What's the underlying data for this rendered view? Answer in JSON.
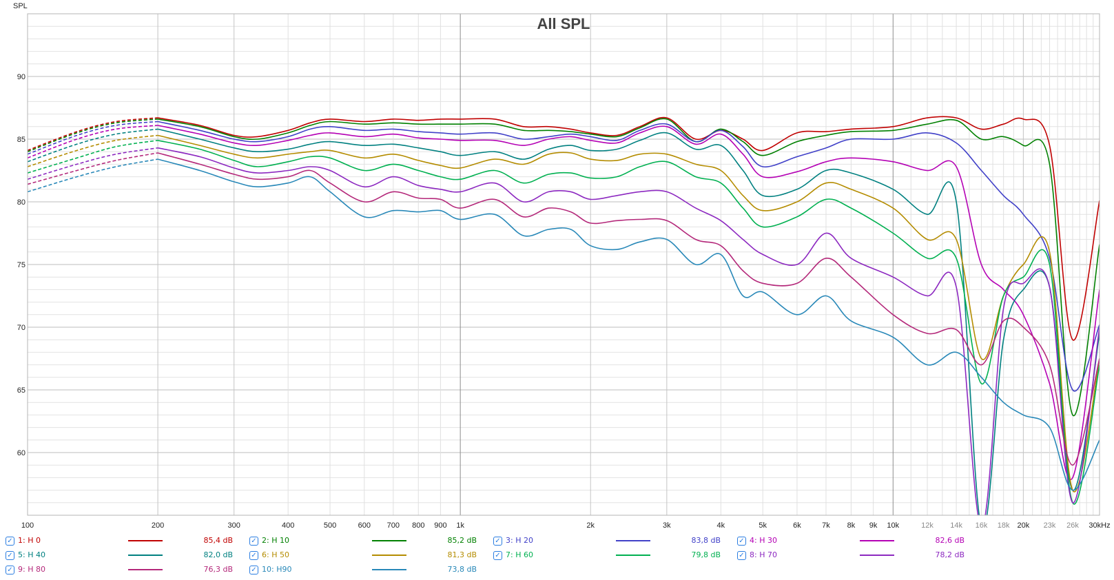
{
  "chart_data": {
    "type": "line",
    "title": "All SPL",
    "ylabel": "SPL",
    "xlabel": "",
    "xscale": "log",
    "xlim": [
      100,
      30000
    ],
    "ylim": [
      55,
      95
    ],
    "grid": true,
    "yticks": [
      60,
      65,
      70,
      75,
      80,
      85,
      90
    ],
    "xticks": [
      {
        "v": 100,
        "label": "100",
        "dim": false
      },
      {
        "v": 200,
        "label": "200",
        "dim": false
      },
      {
        "v": 300,
        "label": "300",
        "dim": false
      },
      {
        "v": 400,
        "label": "400",
        "dim": false
      },
      {
        "v": 500,
        "label": "500",
        "dim": false
      },
      {
        "v": 600,
        "label": "600",
        "dim": false
      },
      {
        "v": 700,
        "label": "700",
        "dim": false
      },
      {
        "v": 800,
        "label": "800",
        "dim": false
      },
      {
        "v": 900,
        "label": "900",
        "dim": false
      },
      {
        "v": 1000,
        "label": "1k",
        "dim": false
      },
      {
        "v": 2000,
        "label": "2k",
        "dim": false
      },
      {
        "v": 3000,
        "label": "3k",
        "dim": false
      },
      {
        "v": 4000,
        "label": "4k",
        "dim": false
      },
      {
        "v": 5000,
        "label": "5k",
        "dim": false
      },
      {
        "v": 6000,
        "label": "6k",
        "dim": false
      },
      {
        "v": 7000,
        "label": "7k",
        "dim": false
      },
      {
        "v": 8000,
        "label": "8k",
        "dim": false
      },
      {
        "v": 9000,
        "label": "9k",
        "dim": false
      },
      {
        "v": 10000,
        "label": "10k",
        "dim": false
      },
      {
        "v": 12000,
        "label": "12k",
        "dim": true
      },
      {
        "v": 14000,
        "label": "14k",
        "dim": true
      },
      {
        "v": 16000,
        "label": "16k",
        "dim": true
      },
      {
        "v": 18000,
        "label": "18k",
        "dim": true
      },
      {
        "v": 20000,
        "label": "20k",
        "dim": false
      },
      {
        "v": 23000,
        "label": "23k",
        "dim": true
      },
      {
        "v": 26000,
        "label": "26k",
        "dim": true
      },
      {
        "v": 30000,
        "label": "30kHz",
        "dim": false
      }
    ],
    "dashed_below_hz": 200,
    "x": [
      100,
      130,
      160,
      200,
      250,
      300,
      340,
      400,
      450,
      500,
      600,
      700,
      800,
      900,
      1000,
      1200,
      1400,
      1600,
      1800,
      2000,
      2300,
      2600,
      3000,
      3500,
      4000,
      4500,
      5000,
      6000,
      7000,
      8000,
      10000,
      12000,
      14000,
      16000,
      18000,
      20000,
      23000,
      26000,
      30000
    ],
    "series": [
      {
        "name": "1: H 0",
        "value": "85,4 dB",
        "color": "#c00000",
        "values": [
          84.1,
          85.6,
          86.4,
          86.7,
          86.1,
          85.3,
          85.2,
          85.7,
          86.3,
          86.6,
          86.4,
          86.6,
          86.5,
          86.6,
          86.6,
          86.6,
          86.0,
          86.0,
          85.8,
          85.5,
          85.3,
          86.0,
          86.7,
          85.0,
          85.7,
          85.0,
          84.1,
          85.5,
          85.6,
          85.8,
          86.0,
          86.7,
          86.7,
          85.8,
          86.2,
          86.6,
          84.5,
          69.0,
          80.1
        ]
      },
      {
        "name": "2: H 10",
        "value": "85,2 dB",
        "color": "#008000",
        "values": [
          84.0,
          85.5,
          86.3,
          86.6,
          86.0,
          85.2,
          85.0,
          85.5,
          86.1,
          86.4,
          86.2,
          86.3,
          86.2,
          86.2,
          86.2,
          86.2,
          85.7,
          85.7,
          85.6,
          85.4,
          85.2,
          85.9,
          86.6,
          84.8,
          85.8,
          84.8,
          83.7,
          84.8,
          85.3,
          85.6,
          85.7,
          86.2,
          86.5,
          85.0,
          85.2,
          84.5,
          83.0,
          63.0,
          76.6
        ]
      },
      {
        "name": "3: H 20",
        "value": "83,8 dB",
        "color": "#4040c8",
        "values": [
          83.8,
          85.3,
          86.1,
          86.4,
          85.7,
          85.0,
          84.8,
          85.2,
          85.8,
          86.0,
          85.7,
          85.8,
          85.6,
          85.5,
          85.4,
          85.5,
          85.0,
          85.2,
          85.4,
          85.2,
          84.9,
          85.7,
          86.2,
          84.8,
          85.7,
          84.4,
          82.8,
          83.6,
          84.3,
          85.0,
          85.0,
          85.5,
          84.7,
          82.5,
          80.5,
          79.0,
          75.5,
          65.0,
          70.2
        ]
      },
      {
        "name": "4: H 30",
        "value": "82,6 dB",
        "color": "#b400b4",
        "values": [
          83.5,
          85.0,
          85.8,
          86.1,
          85.4,
          84.7,
          84.5,
          84.9,
          85.3,
          85.5,
          85.2,
          85.4,
          85.1,
          85.0,
          84.9,
          84.9,
          84.5,
          85.0,
          85.2,
          84.9,
          84.7,
          85.5,
          86.0,
          84.6,
          85.4,
          83.8,
          82.0,
          82.4,
          83.2,
          83.5,
          83.2,
          82.5,
          82.8,
          75.0,
          73.0,
          71.0,
          65.5,
          58.0,
          73.0
        ]
      },
      {
        "name": "5: H 40",
        "value": "82,0 dB",
        "color": "#008080",
        "values": [
          83.2,
          84.6,
          85.4,
          85.8,
          85.0,
          84.3,
          84.0,
          84.2,
          84.6,
          84.8,
          84.5,
          84.6,
          84.3,
          84.0,
          83.7,
          84.0,
          83.4,
          84.2,
          84.5,
          84.1,
          84.2,
          84.9,
          85.5,
          84.2,
          84.5,
          82.5,
          80.5,
          81.0,
          82.5,
          82.3,
          81.0,
          79.0,
          80.0,
          54.0,
          69.0,
          73.0,
          73.2,
          57.0,
          69.5
        ]
      },
      {
        "name": "6: H 50",
        "value": "81,3 dB",
        "color": "#b48c00",
        "values": [
          82.8,
          84.1,
          84.9,
          85.3,
          84.5,
          83.8,
          83.5,
          83.8,
          84.0,
          84.1,
          83.5,
          83.8,
          83.3,
          82.9,
          82.7,
          83.4,
          83.0,
          83.8,
          83.9,
          83.4,
          83.3,
          83.8,
          83.8,
          83.0,
          82.5,
          80.5,
          79.3,
          80.0,
          81.5,
          81.0,
          79.5,
          77.0,
          77.0,
          67.5,
          72.5,
          75.0,
          76.0,
          57.0,
          67.5
        ]
      },
      {
        "name": "7: H 60",
        "value": "79,8 dB",
        "color": "#00b050",
        "values": [
          82.3,
          83.5,
          84.4,
          84.9,
          84.2,
          83.3,
          82.8,
          83.2,
          83.6,
          83.5,
          82.5,
          83.0,
          82.5,
          82.0,
          81.8,
          82.5,
          81.5,
          82.2,
          82.3,
          81.9,
          82.0,
          82.8,
          83.2,
          82.0,
          81.5,
          79.5,
          78.0,
          78.8,
          80.2,
          79.5,
          77.5,
          75.5,
          75.5,
          65.5,
          72.5,
          74.0,
          75.0,
          56.0,
          67.0
        ]
      },
      {
        "name": "8: H 70",
        "value": "78,2 dB",
        "color": "#8c28c0",
        "values": [
          81.8,
          83.0,
          83.8,
          84.3,
          83.6,
          82.7,
          82.3,
          82.5,
          82.8,
          82.5,
          81.2,
          82.0,
          81.3,
          81.0,
          80.8,
          81.5,
          80.0,
          80.8,
          80.8,
          80.2,
          80.5,
          80.8,
          80.8,
          79.5,
          78.5,
          77.0,
          75.8,
          75.0,
          77.5,
          75.5,
          74.0,
          72.5,
          73.2,
          54.0,
          71.5,
          73.5,
          73.2,
          56.0,
          70.0
        ]
      },
      {
        "name": "9: H 80",
        "value": "76,3 dB",
        "color": "#b4287a",
        "values": [
          81.4,
          82.5,
          83.3,
          83.9,
          83.0,
          82.2,
          81.8,
          82.0,
          82.5,
          81.5,
          80.0,
          80.8,
          80.3,
          80.2,
          79.5,
          80.2,
          78.8,
          79.5,
          79.2,
          78.3,
          78.5,
          78.6,
          78.5,
          77.0,
          76.5,
          74.5,
          73.5,
          73.5,
          75.5,
          74.0,
          71.0,
          69.5,
          69.8,
          67.0,
          70.5,
          70.0,
          67.0,
          59.0,
          67.5
        ]
      },
      {
        "name": "10: H90",
        "value": "73,8 dB",
        "color": "#2888b8",
        "values": [
          80.8,
          82.0,
          82.8,
          83.4,
          82.5,
          81.6,
          81.2,
          81.5,
          82.0,
          80.8,
          78.8,
          79.3,
          79.2,
          79.3,
          78.6,
          79.0,
          77.3,
          77.8,
          77.8,
          76.5,
          76.2,
          76.8,
          77.0,
          75.0,
          75.8,
          72.5,
          72.8,
          71.0,
          72.5,
          70.5,
          69.2,
          67.0,
          68.0,
          66.0,
          64.0,
          63.0,
          62.0,
          57.0,
          61.0
        ]
      }
    ]
  },
  "legend": {
    "checked_glyph": "✓"
  }
}
